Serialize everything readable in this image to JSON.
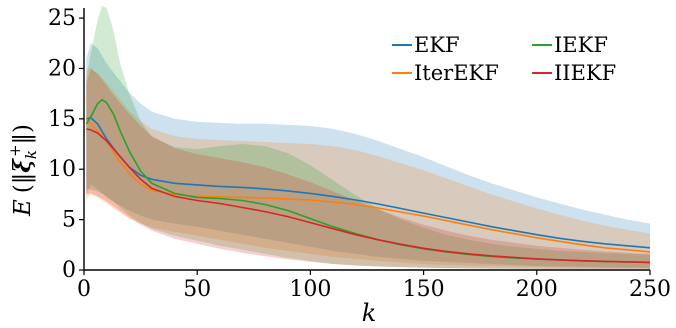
{
  "chart_data": {
    "type": "line",
    "title": "",
    "xlabel": "k",
    "ylabel": "E (‖ξk+‖)",
    "xlim": [
      0,
      250
    ],
    "ylim": [
      0,
      26
    ],
    "xticks": [
      0,
      50,
      100,
      150,
      200,
      250
    ],
    "yticks": [
      0,
      5,
      10,
      15,
      20,
      25
    ],
    "grid": false,
    "legend": "top-right",
    "series": [
      {
        "name": "EKF",
        "color": "#1f77b4",
        "x": [
          1,
          3,
          6,
          10,
          15,
          20,
          25,
          30,
          40,
          50,
          60,
          70,
          80,
          90,
          100,
          110,
          120,
          130,
          140,
          150,
          160,
          170,
          180,
          190,
          200,
          210,
          220,
          230,
          240,
          250
        ],
        "mean": [
          15.0,
          15.1,
          14.5,
          13.0,
          11.5,
          10.2,
          9.4,
          9.0,
          8.6,
          8.45,
          8.3,
          8.2,
          8.05,
          7.85,
          7.6,
          7.3,
          6.95,
          6.55,
          6.1,
          5.65,
          5.2,
          4.75,
          4.3,
          3.9,
          3.5,
          3.15,
          2.85,
          2.6,
          2.4,
          2.2
        ],
        "lower": [
          7.5,
          8.5,
          8.0,
          7.2,
          6.5,
          5.9,
          5.4,
          5.0,
          4.6,
          4.3,
          3.9,
          3.5,
          3.1,
          2.7,
          2.3,
          1.9,
          1.6,
          1.3,
          1.1,
          0.9,
          0.8,
          0.7,
          0.6,
          0.5,
          0.4,
          0.35,
          0.3,
          0.25,
          0.25,
          0.2
        ],
        "upper": [
          21.0,
          22.5,
          22.0,
          20.5,
          19.0,
          17.6,
          16.5,
          15.7,
          15.0,
          14.7,
          14.6,
          14.5,
          14.5,
          14.4,
          14.3,
          14.0,
          13.5,
          12.8,
          12.0,
          11.2,
          10.3,
          9.4,
          8.6,
          7.9,
          7.2,
          6.6,
          6.0,
          5.5,
          5.0,
          4.6
        ]
      },
      {
        "name": "IterEKF",
        "color": "#ff7f0e",
        "x": [
          1,
          3,
          6,
          10,
          15,
          20,
          25,
          30,
          40,
          50,
          60,
          70,
          80,
          90,
          100,
          110,
          120,
          130,
          140,
          150,
          160,
          170,
          180,
          190,
          200,
          210,
          220,
          230,
          240,
          250
        ],
        "mean": [
          15.0,
          14.5,
          13.8,
          12.8,
          11.0,
          9.6,
          8.5,
          7.9,
          7.5,
          7.3,
          7.25,
          7.2,
          7.15,
          7.05,
          6.95,
          6.75,
          6.5,
          6.15,
          5.75,
          5.35,
          4.9,
          4.45,
          4.0,
          3.6,
          3.2,
          2.85,
          2.5,
          2.2,
          2.0,
          1.8
        ],
        "lower": [
          7.0,
          7.5,
          7.2,
          6.6,
          5.8,
          5.1,
          4.6,
          4.2,
          3.8,
          3.4,
          3.0,
          2.6,
          2.2,
          1.9,
          1.6,
          1.3,
          1.1,
          0.9,
          0.75,
          0.6,
          0.5,
          0.45,
          0.4,
          0.35,
          0.3,
          0.28,
          0.25,
          0.22,
          0.2,
          0.2
        ],
        "upper": [
          20.0,
          20.0,
          19.5,
          18.6,
          17.2,
          15.8,
          14.8,
          14.0,
          13.3,
          13.0,
          12.9,
          12.8,
          12.7,
          12.6,
          12.5,
          12.3,
          11.9,
          11.3,
          10.6,
          9.9,
          9.1,
          8.3,
          7.5,
          6.8,
          6.1,
          5.5,
          4.9,
          4.4,
          4.0,
          3.6
        ]
      },
      {
        "name": "IEKF",
        "color": "#2ca02c",
        "x": [
          1,
          3,
          6,
          8,
          10,
          13,
          16,
          20,
          25,
          30,
          40,
          50,
          60,
          70,
          80,
          90,
          100,
          110,
          120,
          130,
          140,
          150,
          160,
          170,
          180,
          190,
          200,
          210,
          220,
          230,
          240,
          250
        ],
        "mean": [
          14.5,
          15.2,
          16.5,
          16.9,
          16.6,
          15.5,
          13.8,
          11.8,
          9.8,
          8.6,
          7.6,
          7.2,
          7.1,
          6.9,
          6.5,
          5.9,
          5.1,
          4.3,
          3.6,
          3.0,
          2.5,
          2.1,
          1.8,
          1.55,
          1.35,
          1.2,
          1.1,
          1.0,
          0.9,
          0.85,
          0.8,
          0.75
        ],
        "lower": [
          8.0,
          8.0,
          7.8,
          7.6,
          7.3,
          6.8,
          6.2,
          5.4,
          4.7,
          4.1,
          3.4,
          2.9,
          2.4,
          2.0,
          1.6,
          1.2,
          0.9,
          0.6,
          0.45,
          0.35,
          0.28,
          0.22,
          0.18,
          0.15,
          0.13,
          0.12,
          0.1,
          0.1,
          0.1,
          0.1,
          0.1,
          0.1
        ],
        "upper": [
          19.0,
          21.5,
          24.8,
          26.2,
          26.0,
          23.8,
          20.5,
          17.5,
          14.8,
          13.2,
          12.2,
          12.0,
          12.3,
          12.5,
          12.3,
          11.6,
          10.4,
          8.9,
          7.4,
          6.1,
          5.0,
          4.2,
          3.5,
          3.0,
          2.6,
          2.3,
          2.1,
          1.9,
          1.8,
          1.7,
          1.6,
          1.5
        ]
      },
      {
        "name": "IIEKF",
        "color": "#d62728",
        "x": [
          1,
          3,
          6,
          10,
          15,
          20,
          25,
          30,
          40,
          50,
          60,
          70,
          80,
          90,
          100,
          110,
          120,
          130,
          140,
          150,
          160,
          170,
          180,
          190,
          200,
          210,
          220,
          230,
          240,
          250
        ],
        "mean": [
          14.0,
          13.9,
          13.6,
          12.8,
          11.5,
          10.2,
          9.0,
          8.1,
          7.3,
          6.9,
          6.6,
          6.2,
          5.8,
          5.3,
          4.7,
          4.1,
          3.5,
          3.0,
          2.55,
          2.15,
          1.85,
          1.6,
          1.4,
          1.25,
          1.1,
          1.0,
          0.92,
          0.85,
          0.8,
          0.75
        ],
        "lower": [
          7.5,
          7.6,
          7.3,
          6.8,
          6.0,
          5.2,
          4.5,
          3.9,
          3.1,
          2.6,
          2.1,
          1.7,
          1.35,
          1.05,
          0.8,
          0.6,
          0.45,
          0.35,
          0.3,
          0.25,
          0.2,
          0.18,
          0.15,
          0.13,
          0.12,
          0.1,
          0.1,
          0.1,
          0.1,
          0.1
        ],
        "upper": [
          18.5,
          20.0,
          19.5,
          18.3,
          16.8,
          15.5,
          14.3,
          13.3,
          12.1,
          11.5,
          11.1,
          10.7,
          10.2,
          9.5,
          8.7,
          7.8,
          6.9,
          6.0,
          5.2,
          4.5,
          3.9,
          3.4,
          3.0,
          2.7,
          2.4,
          2.2,
          2.0,
          1.85,
          1.7,
          1.6
        ]
      }
    ]
  }
}
